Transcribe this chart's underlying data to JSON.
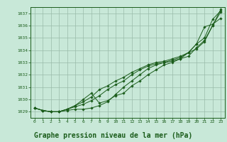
{
  "background_color": "#c8e8d8",
  "grid_color": "#99bbaa",
  "line_color": "#1a5c1a",
  "marker_color": "#1a5c1a",
  "title": "Graphe pression niveau de la mer (hPa)",
  "title_fontsize": 7.0,
  "ylim": [
    1028.5,
    1037.5
  ],
  "xlim": [
    -0.5,
    23.5
  ],
  "yticks": [
    1029,
    1030,
    1031,
    1032,
    1033,
    1034,
    1035,
    1036,
    1037
  ],
  "xticks": [
    0,
    1,
    2,
    3,
    4,
    5,
    6,
    7,
    8,
    9,
    10,
    11,
    12,
    13,
    14,
    15,
    16,
    17,
    18,
    19,
    20,
    21,
    22,
    23
  ],
  "series": [
    [
      1029.3,
      1029.1,
      1029.0,
      1029.0,
      1029.1,
      1029.2,
      1029.2,
      1029.3,
      1029.5,
      1029.8,
      1030.4,
      1031.0,
      1031.5,
      1032.0,
      1032.5,
      1032.8,
      1033.0,
      1033.1,
      1033.3,
      1033.8,
      1034.5,
      1035.9,
      1036.1,
      1036.6
    ],
    [
      1029.3,
      1029.1,
      1029.0,
      1029.0,
      1029.2,
      1029.4,
      1029.6,
      1029.9,
      1030.3,
      1030.8,
      1031.2,
      1031.5,
      1032.0,
      1032.4,
      1032.7,
      1032.9,
      1033.0,
      1033.2,
      1033.4,
      1033.8,
      1034.1,
      1034.7,
      1036.0,
      1037.1
    ],
    [
      1029.3,
      1029.1,
      1029.0,
      1029.0,
      1029.2,
      1029.5,
      1029.8,
      1030.2,
      1030.8,
      1031.1,
      1031.5,
      1031.8,
      1032.2,
      1032.5,
      1032.8,
      1033.0,
      1033.1,
      1033.3,
      1033.5,
      1033.8,
      1034.5,
      1035.0,
      1036.5,
      1037.2
    ],
    [
      1029.3,
      1029.1,
      1029.0,
      1029.0,
      1029.2,
      1029.5,
      1030.0,
      1030.5,
      1029.7,
      1029.9,
      1030.3,
      1030.5,
      1031.1,
      1031.5,
      1032.0,
      1032.4,
      1032.8,
      1033.0,
      1033.3,
      1033.5,
      1034.2,
      1034.8,
      1036.0,
      1037.3
    ]
  ]
}
